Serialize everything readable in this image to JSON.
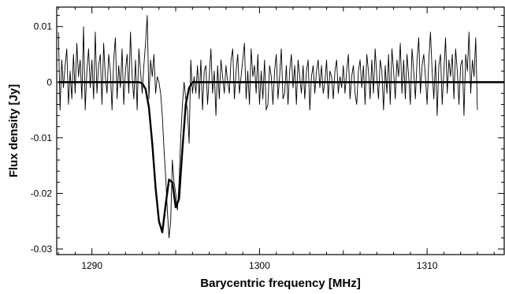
{
  "chart_data": {
    "type": "line",
    "xlabel": "Barycentric frequency [MHz]",
    "ylabel": "Flux density [Jy]",
    "xlim": [
      1287.9,
      1314.6
    ],
    "ylim": [
      -0.031,
      0.0135
    ],
    "x_ticks": [
      1290,
      1300,
      1310
    ],
    "x_tick_labels": [
      "1290",
      "1300",
      "1310"
    ],
    "y_ticks": [
      0.01,
      0,
      -0.01,
      -0.02,
      -0.03
    ],
    "y_tick_labels": [
      "0.01",
      "0",
      "-0.01",
      "-0.02",
      "-0.03"
    ],
    "grid": false,
    "legend": "none",
    "series": [
      {
        "style": "thin",
        "x_start": 1288.0,
        "x_step": 0.1,
        "values": [
          0.009,
          -0.005,
          0.004,
          -0.001,
          0.003,
          0.006,
          -0.004,
          0.002,
          -0.003,
          0.005,
          -0.002,
          0.007,
          0.001,
          0.004,
          -0.003,
          0.01,
          -0.005,
          0.002,
          0.006,
          -0.001,
          0.004,
          -0.003,
          0.009,
          -0.002,
          0.003,
          0.005,
          -0.004,
          0.007,
          0.001,
          -0.002,
          0.005,
          0.002,
          -0.005,
          0.004,
          0.008,
          -0.003,
          0.003,
          -0.001,
          0.006,
          -0.004,
          0.002,
          0.005,
          -0.002,
          0.009,
          0.001,
          -0.003,
          0.004,
          -0.005,
          0.006,
          0.002,
          -0.002,
          0.003,
          0.007,
          0.012,
          -0.003,
          0.004,
          0.001,
          0.005,
          -0.002,
          0.001,
          0.0,
          -0.002,
          -0.006,
          -0.012,
          -0.017,
          -0.023,
          -0.028,
          -0.025,
          -0.014,
          -0.018,
          -0.02,
          -0.023,
          -0.018,
          -0.01,
          -0.004,
          0.0,
          -0.003,
          -0.005,
          -0.011,
          0.004,
          -0.002,
          0.001,
          -0.002,
          0.003,
          -0.003,
          0.004,
          -0.005,
          0.002,
          0.003,
          -0.004,
          0.001,
          0.006,
          -0.002,
          0.002,
          -0.006,
          0.003,
          -0.003,
          0.004,
          0.001,
          -0.002,
          0.003,
          0.0,
          -0.002,
          0.004,
          0.006,
          -0.003,
          0.002,
          0.005,
          -0.002,
          0.001,
          0.004,
          0.007,
          -0.003,
          0.002,
          -0.004,
          0.006,
          0.001,
          0.003,
          -0.002,
          0.005,
          -0.004,
          0.002,
          -0.003,
          0.004,
          -0.005,
          -0.004,
          0.003,
          0.001,
          -0.004,
          0.002,
          0.005,
          -0.003,
          0.001,
          0.006,
          -0.003,
          -0.002,
          0.003,
          -0.004,
          0.002,
          0.005,
          -0.001,
          0.003,
          -0.004,
          0.004,
          0.001,
          -0.002,
          0.003,
          -0.003,
          0.002,
          0.004,
          -0.005,
          0.001,
          0.003,
          -0.002,
          0.002,
          0.004,
          -0.001,
          0.003,
          -0.002,
          0.0,
          0.004,
          -0.003,
          0.002,
          0.001,
          -0.003,
          0.002,
          0.004,
          -0.002,
          0.001,
          -0.001,
          0.003,
          -0.002,
          0.002,
          0.005,
          -0.003,
          0.001,
          0.003,
          -0.002,
          -0.004,
          0.002,
          0.004,
          -0.001,
          0.003,
          -0.004,
          0.005,
          0.002,
          -0.003,
          0.004,
          -0.002,
          0.006,
          0.001,
          -0.003,
          0.004,
          0.002,
          -0.005,
          0.003,
          -0.002,
          0.005,
          -0.004,
          0.006,
          0.002,
          -0.003,
          0.004,
          0.001,
          0.007,
          -0.002,
          0.004,
          -0.003,
          0.005,
          0.001,
          -0.004,
          0.006,
          0.002,
          -0.003,
          0.004,
          0.008,
          -0.002,
          0.003,
          0.005,
          0.001,
          -0.004,
          0.004,
          0.009,
          0.002,
          -0.003,
          0.004,
          -0.006,
          0.003,
          0.005,
          -0.004,
          0.002,
          0.008,
          -0.002,
          0.004,
          0.001,
          0.005,
          -0.003,
          0.006,
          0.002,
          -0.004,
          0.003,
          0.004,
          -0.006,
          0.005,
          0.002,
          0.009,
          -0.002,
          0.004,
          0.001,
          0.008,
          -0.005
        ]
      },
      {
        "style": "thick",
        "x": [
          1288.0,
          1292.8,
          1293.0,
          1293.2,
          1293.4,
          1293.6,
          1293.8,
          1294.0,
          1294.2,
          1294.4,
          1294.6,
          1294.8,
          1295.0,
          1295.2,
          1295.4,
          1295.6,
          1295.8,
          1296.0,
          1314.6
        ],
        "values": [
          0.0,
          0.0,
          -0.0002,
          -0.0012,
          -0.0045,
          -0.011,
          -0.019,
          -0.025,
          -0.027,
          -0.022,
          -0.0175,
          -0.018,
          -0.0225,
          -0.021,
          -0.012,
          -0.004,
          -0.001,
          0.0,
          0.0
        ]
      }
    ]
  }
}
